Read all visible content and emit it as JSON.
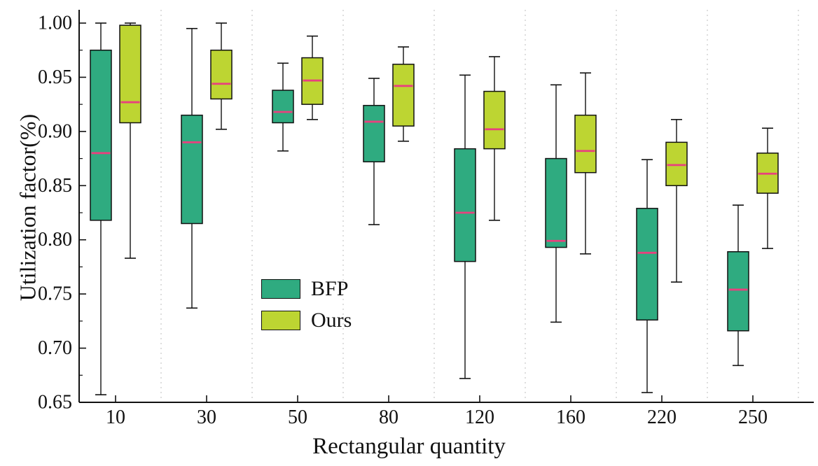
{
  "chart_data": {
    "type": "boxplot",
    "title": "",
    "xlabel": "Rectangular quantity",
    "ylabel": "Utilization factor(%)",
    "ylim": [
      0.65,
      1.0
    ],
    "ytick_step": 0.05,
    "yticks": [
      "0.65",
      "0.70",
      "0.75",
      "0.80",
      "0.85",
      "0.90",
      "0.95",
      "1.00"
    ],
    "categories": [
      "10",
      "30",
      "50",
      "80",
      "120",
      "160",
      "220",
      "250"
    ],
    "grid": "vertical dotted separators between category groups",
    "legend_position": "inside bottom-left-center",
    "legend": [
      "BFP",
      "Ours"
    ],
    "colors": {
      "bfp_box": "#2fab80",
      "ours_box": "#bdd532",
      "median_line": "#e8417e",
      "box_stroke": "#111111",
      "whisker": "#111111",
      "separator": "#c9c9c9",
      "axis": "#111111"
    },
    "series": [
      {
        "name": "BFP",
        "boxes": [
          {
            "min": 0.657,
            "q1": 0.818,
            "median": 0.88,
            "q3": 0.975,
            "max": 1.0
          },
          {
            "min": 0.737,
            "q1": 0.815,
            "median": 0.89,
            "q3": 0.915,
            "max": 0.995
          },
          {
            "min": 0.882,
            "q1": 0.908,
            "median": 0.918,
            "q3": 0.938,
            "max": 0.963
          },
          {
            "min": 0.814,
            "q1": 0.872,
            "median": 0.909,
            "q3": 0.924,
            "max": 0.949
          },
          {
            "min": 0.672,
            "q1": 0.78,
            "median": 0.825,
            "q3": 0.884,
            "max": 0.952
          },
          {
            "min": 0.724,
            "q1": 0.793,
            "median": 0.799,
            "q3": 0.875,
            "max": 0.943
          },
          {
            "min": 0.659,
            "q1": 0.726,
            "median": 0.788,
            "q3": 0.829,
            "max": 0.874
          },
          {
            "min": 0.684,
            "q1": 0.716,
            "median": 0.754,
            "q3": 0.789,
            "max": 0.832
          }
        ]
      },
      {
        "name": "Ours",
        "boxes": [
          {
            "min": 0.783,
            "q1": 0.908,
            "median": 0.927,
            "q3": 0.998,
            "max": 1.0
          },
          {
            "min": 0.902,
            "q1": 0.93,
            "median": 0.944,
            "q3": 0.975,
            "max": 1.0
          },
          {
            "min": 0.911,
            "q1": 0.925,
            "median": 0.947,
            "q3": 0.968,
            "max": 0.988
          },
          {
            "min": 0.891,
            "q1": 0.905,
            "median": 0.942,
            "q3": 0.962,
            "max": 0.978
          },
          {
            "min": 0.818,
            "q1": 0.884,
            "median": 0.902,
            "q3": 0.937,
            "max": 0.969
          },
          {
            "min": 0.787,
            "q1": 0.862,
            "median": 0.882,
            "q3": 0.915,
            "max": 0.954
          },
          {
            "min": 0.761,
            "q1": 0.85,
            "median": 0.869,
            "q3": 0.89,
            "max": 0.911
          },
          {
            "min": 0.792,
            "q1": 0.843,
            "median": 0.861,
            "q3": 0.88,
            "max": 0.903
          }
        ]
      }
    ]
  }
}
